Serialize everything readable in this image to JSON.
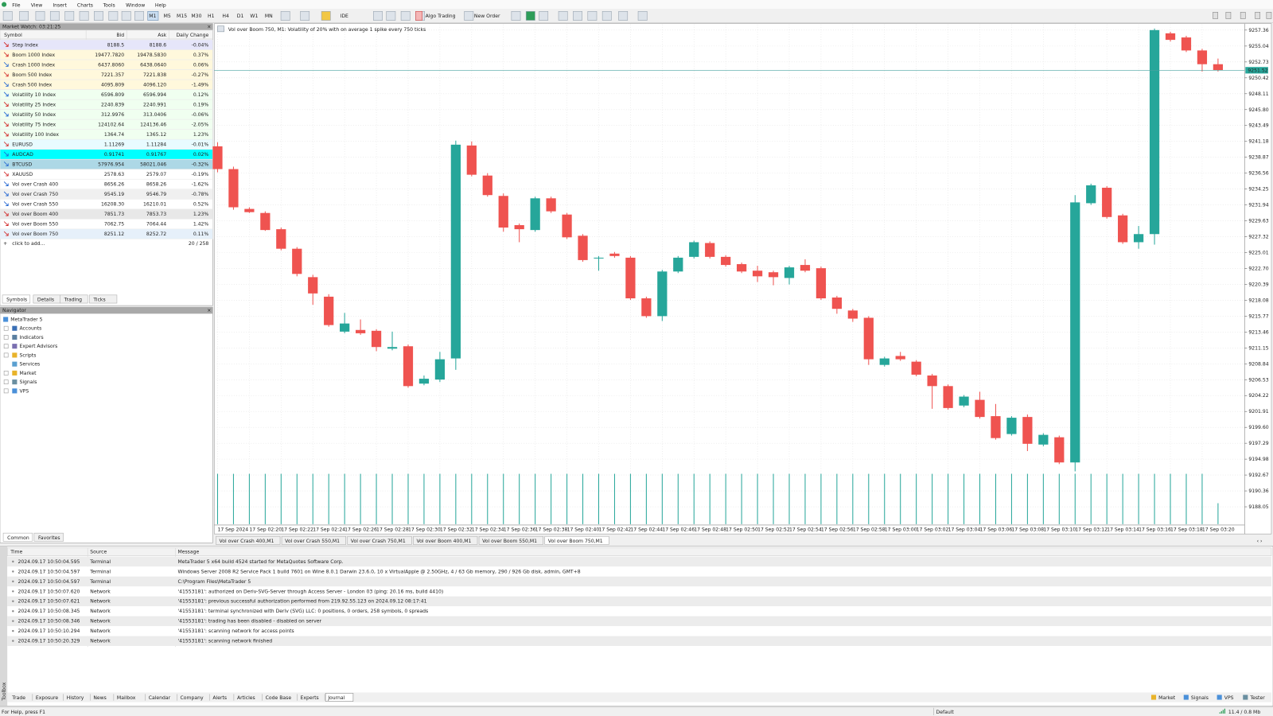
{
  "menu": [
    "File",
    "View",
    "Insert",
    "Charts",
    "Tools",
    "Window",
    "Help"
  ],
  "toolbar": {
    "timeframes": [
      "M1",
      "M5",
      "M15",
      "M30",
      "H1",
      "H4",
      "D1",
      "W1",
      "MN"
    ],
    "ide": "IDE",
    "algo_trading": "Algo Trading",
    "new_order": "New Order"
  },
  "market_watch": {
    "title": "Market Watch: 03:21:25",
    "columns": [
      "Symbol",
      "Bid",
      "Ask",
      "Daily Change"
    ],
    "rows": [
      [
        "Step Index",
        "8188.5",
        "8188.6",
        "-0.04%"
      ],
      [
        "Boom 1000 Index",
        "19477.7820",
        "19478.5830",
        "0.37%"
      ],
      [
        "Crash 1000 Index",
        "6437.8060",
        "6438.0640",
        "0.06%"
      ],
      [
        "Boom 500 Index",
        "7221.357",
        "7221.838",
        "-0.27%"
      ],
      [
        "Crash 500 Index",
        "4095.809",
        "4096.120",
        "-1.49%"
      ],
      [
        "Volatility 10 Index",
        "6596.809",
        "6596.994",
        "0.12%"
      ],
      [
        "Volatility 25 Index",
        "2240.839",
        "2240.991",
        "0.19%"
      ],
      [
        "Volatility 50 Index",
        "312.9976",
        "313.0406",
        "-0.06%"
      ],
      [
        "Volatility 75 Index",
        "124102.64",
        "124136.46",
        "-2.05%"
      ],
      [
        "Volatility 100 Index",
        "1364.74",
        "1365.12",
        "1.23%"
      ],
      [
        "EURUSD",
        "1.11269",
        "1.11284",
        "-0.01%"
      ],
      [
        "AUDCAD",
        "0.91741",
        "0.91767",
        "0.02%"
      ],
      [
        "BTCUSD",
        "57976.954",
        "58021.046",
        "-0.32%"
      ],
      [
        "XAUUSD",
        "2578.63",
        "2579.07",
        "-0.19%"
      ],
      [
        "Vol over Crash 400",
        "8656.26",
        "8658.26",
        "-1.62%"
      ],
      [
        "Vol over Crash 750",
        "9545.19",
        "9546.79",
        "-0.78%"
      ],
      [
        "Vol over Crash 550",
        "16208.30",
        "16210.01",
        "0.52%"
      ],
      [
        "Vol over Boom 400",
        "7851.73",
        "7853.73",
        "1.23%"
      ],
      [
        "Vol over Boom 550",
        "7062.75",
        "7064.44",
        "1.42%"
      ],
      [
        "Vol over Boom 750",
        "8251.12",
        "8252.72",
        "0.11%"
      ]
    ],
    "add": "click to add...",
    "count": "20 / 258",
    "tabs": [
      "Symbols",
      "Details",
      "Trading",
      "Ticks"
    ]
  },
  "navigator": {
    "title": "Navigator",
    "items": [
      "MetaTrader 5",
      "Accounts",
      "Indicators",
      "Expert Advisors",
      "Scripts",
      "Services",
      "Market",
      "Signals",
      "VPS"
    ],
    "tabs": [
      "Common",
      "Favorites"
    ]
  },
  "chart_data": {
    "type": "candlestick",
    "title": "Vol over Boom 750, M1:  Volatility of 20% with on average 1 spike every 750 ticks",
    "categories": [
      "17 Sep 2024",
      null,
      "17 Sep 02:20",
      null,
      "17 Sep 02:22",
      null,
      "17 Sep 02:24",
      null,
      "17 Sep 02:26",
      null,
      "17 Sep 02:28",
      null,
      "17 Sep 02:30",
      null,
      "17 Sep 02:32",
      null,
      "17 Sep 02:34",
      null,
      "17 Sep 02:36",
      null,
      "17 Sep 02:38",
      null,
      "17 Sep 02:40",
      null,
      "17 Sep 02:42",
      null,
      "17 Sep 02:44",
      null,
      "17 Sep 02:46",
      null,
      "17 Sep 02:48",
      null,
      "17 Sep 02:50",
      null,
      "17 Sep 02:52",
      null,
      "17 Sep 02:54",
      null,
      "17 Sep 02:56",
      null,
      "17 Sep 02:58",
      null,
      "17 Sep 03:00",
      null,
      "17 Sep 03:02",
      null,
      "17 Sep 03:04",
      null,
      "17 Sep 03:06",
      null,
      "17 Sep 03:08",
      null,
      "17 Sep 03:10",
      null,
      "17 Sep 03:12",
      null,
      "17 Sep 03:14",
      null,
      "17 Sep 03:16",
      null,
      "17 Sep 03:18",
      null,
      "17 Sep 03:20",
      null
    ],
    "open": [
      9240.46,
      9237.15,
      9231.36,
      9230.77,
      9228.41,
      9225.57,
      9221.44,
      9218.6,
      9213.52,
      9213.76,
      9213.64,
      9211.04,
      9211.39,
      9205.96,
      9206.55,
      9209.62,
      9240.58,
      9236.21,
      9233.25,
      9229.0,
      9228.29,
      9232.9,
      9230.54,
      9227.46,
      9224.16,
      9224.86,
      9224.27,
      9218.36,
      9215.77,
      9222.26,
      9224.39,
      9226.4,
      9224.39,
      9223.33,
      9222.38,
      9222.15,
      9221.32,
      9223.21,
      9222.74,
      9218.48,
      9216.59,
      9215.53,
      9208.68,
      9209.98,
      9209.15,
      9207.14,
      9205.6,
      9202.77,
      9203.6,
      9201.23,
      9198.63,
      9201.11,
      9197.1,
      9198.16,
      9194.5,
      9232.19,
      9234.44,
      9230.42,
      9226.52,
      9227.7,
      9256.89,
      9256.29,
      9254.4,
      9252.4
    ],
    "high": [
      9241.05,
      9237.51,
      9231.6,
      9231.01,
      9228.65,
      9225.81,
      9221.79,
      9218.96,
      9216.24,
      9215.29,
      9213.88,
      9213.52,
      9211.63,
      9207.14,
      9210.57,
      9241.29,
      9241.17,
      9236.56,
      9233.61,
      9229.24,
      9233.14,
      9233.14,
      9230.77,
      9227.7,
      9224.51,
      9225.1,
      9224.51,
      9218.6,
      9222.5,
      9224.51,
      9226.75,
      9226.64,
      9224.63,
      9223.56,
      9223.09,
      9222.38,
      9223.09,
      9224.04,
      9222.97,
      9218.72,
      9216.83,
      9215.77,
      9209.86,
      9210.57,
      9209.38,
      9207.38,
      9205.84,
      9204.3,
      9204.78,
      9203.0,
      9201.23,
      9201.47,
      9198.75,
      9198.4,
      9233.37,
      9235.03,
      9234.67,
      9230.65,
      9228.88,
      9257.59,
      9257.12,
      9256.53,
      9254.64,
      9253.22
    ],
    "low": [
      9236.68,
      9231.24,
      9230.77,
      9228.17,
      9225.34,
      9221.56,
      9217.42,
      9214.23,
      9213.28,
      9213.05,
      9210.68,
      9210.8,
      9205.37,
      9205.72,
      9206.19,
      9207.97,
      9236.09,
      9233.14,
      9228.05,
      9226.52,
      9228.05,
      9230.77,
      9226.99,
      9223.68,
      9222.38,
      9224.27,
      9218.13,
      9215.53,
      9215.06,
      9222.03,
      9224.16,
      9224.16,
      9222.97,
      9222.03,
      9220.73,
      9220.26,
      9220.37,
      9222.15,
      9218.13,
      9216.12,
      9214.94,
      9208.68,
      9208.44,
      9209.27,
      9207.02,
      9202.3,
      9202.18,
      9202.53,
      9200.88,
      9197.81,
      9198.4,
      9196.15,
      9196.86,
      9194.26,
      9193.2,
      9231.95,
      9229.94,
      9226.28,
      9225.57,
      9226.16,
      9255.7,
      9254.17,
      9251.33,
      9251.33
    ],
    "close": [
      9237.15,
      9231.6,
      9230.89,
      9228.29,
      9225.57,
      9221.91,
      9219.07,
      9214.47,
      9214.7,
      9213.28,
      9211.28,
      9211.28,
      9205.6,
      9206.67,
      9209.5,
      9240.7,
      9236.33,
      9233.37,
      9228.65,
      9228.41,
      9232.9,
      9231.01,
      9227.23,
      9223.92,
      9224.27,
      9224.51,
      9218.36,
      9215.77,
      9222.26,
      9224.27,
      9226.52,
      9224.39,
      9223.21,
      9222.26,
      9221.56,
      9221.44,
      9222.86,
      9222.38,
      9218.36,
      9216.83,
      9215.41,
      9209.5,
      9209.62,
      9209.5,
      9207.26,
      9205.6,
      9202.41,
      9204.07,
      9201.11,
      9198.04,
      9201.0,
      9197.21,
      9198.51,
      9194.5,
      9232.31,
      9234.79,
      9230.18,
      9226.52,
      9227.7,
      9257.36,
      9255.94,
      9254.4,
      9252.4,
      9251.52
    ],
    "volume": [
      60,
      60,
      60,
      60,
      60,
      60,
      60,
      60,
      60,
      60,
      60,
      60,
      60,
      60,
      60,
      60,
      60,
      60,
      60,
      60,
      60,
      60,
      60,
      60,
      60,
      60,
      60,
      60,
      60,
      60,
      60,
      60,
      60,
      60,
      60,
      60,
      60,
      60,
      60,
      60,
      60,
      60,
      60,
      60,
      60,
      60,
      60,
      60,
      60,
      60,
      60,
      60,
      60,
      60,
      60,
      60,
      60,
      60,
      60,
      60,
      60,
      60,
      60,
      25
    ],
    "ylim": [
      9185.52,
      9258.19
    ],
    "yticks": [
      9257.36,
      9255.04,
      9252.73,
      9250.42,
      9248.11,
      {
        "value": 9245.8,
        "label": "9245.80"
      },
      9243.49,
      9241.18,
      9238.87,
      9236.56,
      9234.25,
      9231.94,
      9229.63,
      9227.32,
      9225.01,
      {
        "value": 9222.7,
        "label": "9222.70"
      },
      9220.39,
      9218.08,
      9215.77,
      9213.46,
      9211.15,
      9208.84,
      9206.53,
      9204.22,
      9201.91,
      {
        "value": 9199.6,
        "label": "9199.60"
      },
      9197.29,
      9194.98,
      9192.67,
      9190.36,
      9188.05
    ],
    "current_price": 9251.52,
    "up_color": "#26a69a",
    "down_color": "#ef5350",
    "grid": true
  },
  "chart_tabs": [
    "Vol over Crash 400,M1",
    "Vol over Crash 550,M1",
    "Vol over Crash 750,M1",
    "Vol over Boom 400,M1",
    "Vol over Boom 550,M1",
    "Vol over Boom 750,M1"
  ],
  "toolbox": {
    "side_label": "Toolbox",
    "columns": [
      "Time",
      "Source",
      "Message"
    ],
    "rows": [
      [
        "2024.09.17 10:50:04.595",
        "Terminal",
        "MetaTrader 5 x64 build 4524 started for MetaQuotes Software Corp."
      ],
      [
        "2024.09.17 10:50:04.597",
        "Terminal",
        "Windows Server 2008 R2 Service Pack 1 build 7601 on Wine 8.0.1 Darwin 23.6.0, 10 x VirtualApple @ 2.50GHz, 4 / 63 Gb memory, 290 / 926 Gb disk, admin, GMT+8"
      ],
      [
        "2024.09.17 10:50:04.597",
        "Terminal",
        "C:\\Program Files\\MetaTrader 5"
      ],
      [
        "2024.09.17 10:50:07.620",
        "Network",
        "'41553181': authorized on Deriv-SVG-Server through Access Server - London 03 (ping: 20.16 ms, build 4410)"
      ],
      [
        "2024.09.17 10:50:07.621",
        "Network",
        "'41553181': previous successful authorization performed from 219.92.55.123 on 2024.09.12 08:17:41"
      ],
      [
        "2024.09.17 10:50:08.345",
        "Network",
        "'41553181': terminal synchronized with Deriv (SVG) LLC: 0 positions, 0 orders, 258 symbols, 0 spreads"
      ],
      [
        "2024.09.17 10:50:08.346",
        "Network",
        "'41553181': trading has been disabled - disabled on server"
      ],
      [
        "2024.09.17 10:50:10.294",
        "Network",
        "'41553181': scanning network for access points"
      ],
      [
        "2024.09.17 10:50:20.329",
        "Network",
        "'41553181': scanning network finished"
      ]
    ],
    "tabs": [
      "Trade",
      "Exposure",
      "History",
      "News",
      "Mailbox",
      "Calendar",
      "Company",
      "Alerts",
      "Articles",
      "Code Base",
      "Experts",
      "Journal"
    ],
    "right_tabs": [
      "Market",
      "Signals",
      "VPS",
      "Tester"
    ]
  },
  "status": {
    "help": "For Help, press F1",
    "profile": "Default",
    "memory": "11.4 / 0.8 Mb"
  }
}
